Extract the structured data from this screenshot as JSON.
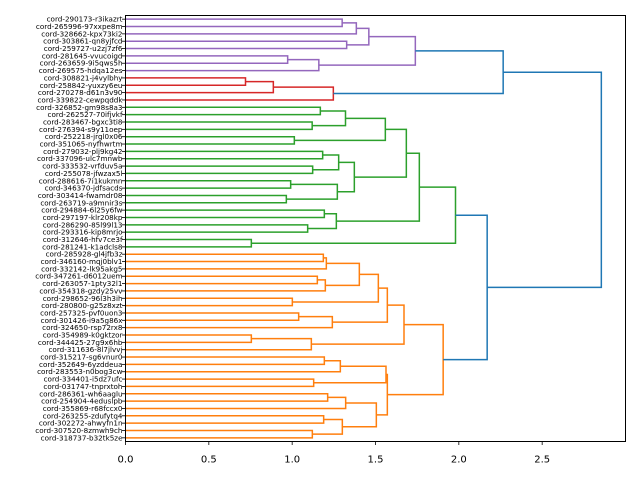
{
  "chart_data": {
    "type": "dendrogram",
    "title": "",
    "xlabel": "",
    "ylabel": "",
    "xlim": [
      0,
      3.0
    ],
    "orientation": "right",
    "xticks": [
      "0.0",
      "0.5",
      "1.0",
      "1.5",
      "2.0",
      "2.5"
    ],
    "xtick_values": [
      0,
      0.5,
      1.0,
      1.5,
      2.0,
      2.5
    ],
    "colors": {
      "above_threshold": "#1f77b4",
      "purple": "#9467bd",
      "red": "#d62728",
      "green": "#2ca02c",
      "orange": "#ff7f0e"
    },
    "leaves": [
      "cord-290173-r3ikazrt",
      "cord-265996-97xxpe8m",
      "cord-328662-kpx73ki2",
      "cord-303861-qn8yjfcd",
      "cord-259727-u2zj7zf6",
      "cord-281645-vvucoigd",
      "cord-263659-9i5qws5h",
      "cord-269575-hdqa12es",
      "cord-308821-j4vylbhy",
      "cord-258842-yuxzy6eu",
      "cord-270278-d61n3v90",
      "cord-339822-cewpqddk",
      "cord-326852-gm98s8a3",
      "cord-262527-70ifjvkf",
      "cord-283467-bgxc3ti8",
      "cord-276394-s9y11oep",
      "cord-252218-jrgl0x06",
      "cord-351065-nyfhwrtm",
      "cord-279032-plj9kg42",
      "cord-337096-ulc7mnwb",
      "cord-333532-vrfduv5a",
      "cord-255078-jfwzax5l",
      "cord-288616-7i1kukmn",
      "cord-346370-jdfsacds",
      "cord-303414-fwamdr08",
      "cord-263719-a9mnir3s",
      "cord-294884-6l25y6fw",
      "cord-297197-klr208kp",
      "cord-286290-85l99l13",
      "cord-293316-kip8mrjo",
      "cord-312646-hfv7ce3f",
      "cord-281241-k1adcls8",
      "cord-285928-gl4jfb3z",
      "cord-346160-mqj0blv1",
      "cord-332142-lk95akg5",
      "cord-347261-d6012uem",
      "cord-263057-1pty32l1",
      "cord-354318-gzdy25vv",
      "cord-298652-96l3h3ih",
      "cord-280800-g25z8xzt",
      "cord-257325-pvf0uon3",
      "cord-301426-i9a5g86x",
      "cord-324650-rsp72rx8",
      "cord-354989-k0gktzor",
      "cord-344425-27g9x6hb",
      "cord-311636-8l7jlvvj",
      "cord-315217-sg6vnur0",
      "cord-352649-6yzddeua",
      "cord-283553-n0bog3cw",
      "cord-334401-i5dz7ufc",
      "cord-031747-tnprxtoh",
      "cord-286361-wh6aaglu",
      "cord-254904-4eduslpb",
      "cord-355869-r68fccx0",
      "cord-263255-zdufytq4",
      "cord-302272-ahwyfn1n",
      "cord-307520-8zmwh9ch",
      "cord-318737-b32tk5ze"
    ],
    "tree": {
      "h": 2.855,
      "c": [
        {
          "h": 2.266,
          "c": [
            {
              "h": 1.739,
              "color": "#9467bd",
              "c": [
                {
                  "h": 1.46,
                  "c": [
                    {
                      "h": 1.385,
                      "c": [
                        {
                          "h": 1.3,
                          "c": [
                            0,
                            1
                          ]
                        },
                        2
                      ]
                    },
                    {
                      "h": 1.327,
                      "c": [
                        3,
                        4
                      ]
                    }
                  ]
                },
                {
                  "h": 1.16,
                  "c": [
                    {
                      "h": 0.973,
                      "c": [
                        5,
                        6
                      ]
                    },
                    7
                  ]
                }
              ]
            },
            {
              "h": 1.247,
              "color": "#d62728",
              "c": [
                {
                  "h": 0.887,
                  "c": [
                    {
                      "h": 0.72,
                      "c": [
                        8,
                        9
                      ]
                    },
                    10
                  ]
                },
                11
              ]
            }
          ]
        },
        {
          "h": 2.17,
          "c": [
            {
              "h": 1.98,
              "color": "#2ca02c",
              "c": [
                {
                  "h": 1.763,
                  "c": [
                    {
                      "h": 1.685,
                      "c": [
                        {
                          "h": 1.559,
                          "c": [
                            {
                              "h": 1.32,
                              "c": [
                                {
                                  "h": 1.169,
                                  "c": [
                                    12,
                                    13
                                  ]
                                },
                                {
                                  "h": 1.12,
                                  "c": [
                                    14,
                                    15
                                  ]
                                }
                              ]
                            },
                            {
                              "h": 1.013,
                              "c": [
                                16,
                                17
                              ]
                            }
                          ]
                        },
                        {
                          "h": 1.373,
                          "c": [
                            {
                              "h": 1.279,
                              "c": [
                                {
                                  "h": 1.183,
                                  "c": [
                                    18,
                                    19
                                  ]
                                },
                                {
                                  "h": 1.123,
                                  "c": [
                                    20,
                                    21
                                  ]
                                }
                              ]
                            },
                            {
                              "h": 1.271,
                              "c": [
                                {
                                  "h": 0.991,
                                  "c": [
                                    22,
                                    23
                                  ]
                                },
                                {
                                  "h": 0.965,
                                  "c": [
                                    24,
                                    25
                                  ]
                                }
                              ]
                            }
                          ]
                        }
                      ]
                    },
                    {
                      "h": 1.265,
                      "c": [
                        {
                          "h": 1.193,
                          "c": [
                            26,
                            27
                          ]
                        },
                        {
                          "h": 1.093,
                          "c": [
                            28,
                            29
                          ]
                        }
                      ]
                    }
                  ]
                },
                {
                  "h": 0.755,
                  "c": [
                    30,
                    31
                  ]
                }
              ]
            },
            {
              "h": 1.906,
              "color": "#ff7f0e",
              "c": [
                {
                  "h": 1.671,
                  "c": [
                    {
                      "h": 1.571,
                      "c": [
                        {
                          "h": 1.517,
                          "c": [
                            {
                              "h": 1.403,
                              "c": [
                                {
                                  "h": 1.205,
                                  "c": [
                                    {
                                      "h": 1.187,
                                      "c": [
                                        32,
                                        33
                                      ]
                                    },
                                    34
                                  ]
                                },
                                {
                                  "h": 1.199,
                                  "c": [
                                    {
                                      "h": 1.151,
                                      "c": [
                                        35,
                                        36
                                      ]
                                    },
                                    37
                                  ]
                                }
                              ]
                            },
                            {
                              "h": 1.001,
                              "c": [
                                38,
                                39
                              ]
                            }
                          ]
                        },
                        {
                          "h": 1.241,
                          "c": [
                            {
                              "h": 1.039,
                              "c": [
                                40,
                                41
                              ]
                            },
                            42
                          ]
                        }
                      ]
                    },
                    {
                      "h": 1.115,
                      "c": [
                        {
                          "h": 0.755,
                          "c": [
                            43,
                            44
                          ]
                        },
                        45
                      ]
                    }
                  ]
                },
                {
                  "h": 1.571,
                  "c": [
                    {
                      "h": 1.563,
                      "c": [
                        {
                          "h": 1.289,
                          "c": [
                            {
                              "h": 1.193,
                              "c": [
                                46,
                                47
                              ]
                            },
                            48
                          ]
                        },
                        {
                          "h": 1.129,
                          "c": [
                            49,
                            50
                          ]
                        }
                      ]
                    },
                    {
                      "h": 1.505,
                      "c": [
                        {
                          "h": 1.321,
                          "c": [
                            {
                              "h": 1.213,
                              "c": [
                                51,
                                52
                              ]
                            },
                            53
                          ]
                        },
                        {
                          "h": 1.301,
                          "c": [
                            {
                              "h": 1.189,
                              "c": [
                                54,
                                55
                              ]
                            },
                            {
                              "h": 1.121,
                              "c": [
                                56,
                                57
                              ]
                            }
                          ]
                        }
                      ]
                    }
                  ]
                }
              ]
            }
          ]
        }
      ]
    }
  }
}
